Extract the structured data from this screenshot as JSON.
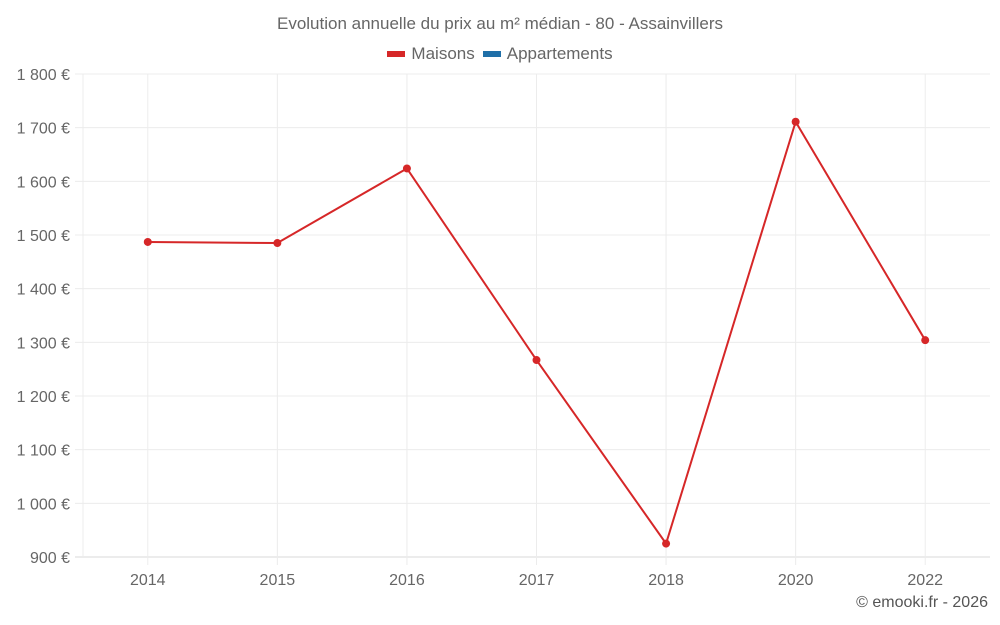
{
  "chart_data": {
    "type": "line",
    "title": "Evolution annuelle du prix au m² médian - 80 - Assainvillers",
    "xlabel": "",
    "ylabel": "",
    "categories": [
      "2014",
      "2015",
      "2016",
      "2017",
      "2018",
      "2020",
      "2022"
    ],
    "series": [
      {
        "name": "Maisons",
        "color": "#d62728",
        "values": [
          1487,
          1485,
          1624,
          1267,
          925,
          1711,
          1304
        ]
      },
      {
        "name": "Appartements",
        "color": "#1f6fa8",
        "values": []
      }
    ],
    "ylim": [
      900,
      1800
    ],
    "yticks": [
      900,
      1000,
      1100,
      1200,
      1300,
      1400,
      1500,
      1600,
      1700,
      1800
    ],
    "ytick_labels": [
      "900 €",
      "1 000 €",
      "1 100 €",
      "1 200 €",
      "1 300 €",
      "1 400 €",
      "1 500 €",
      "1 600 €",
      "1 700 €",
      "1 800 €"
    ],
    "grid": true,
    "legend_position": "top"
  },
  "legend": [
    {
      "label": "Maisons",
      "color": "#d62728"
    },
    {
      "label": "Appartements",
      "color": "#1f6fa8"
    }
  ],
  "credit": "© emooki.fr - 2026"
}
